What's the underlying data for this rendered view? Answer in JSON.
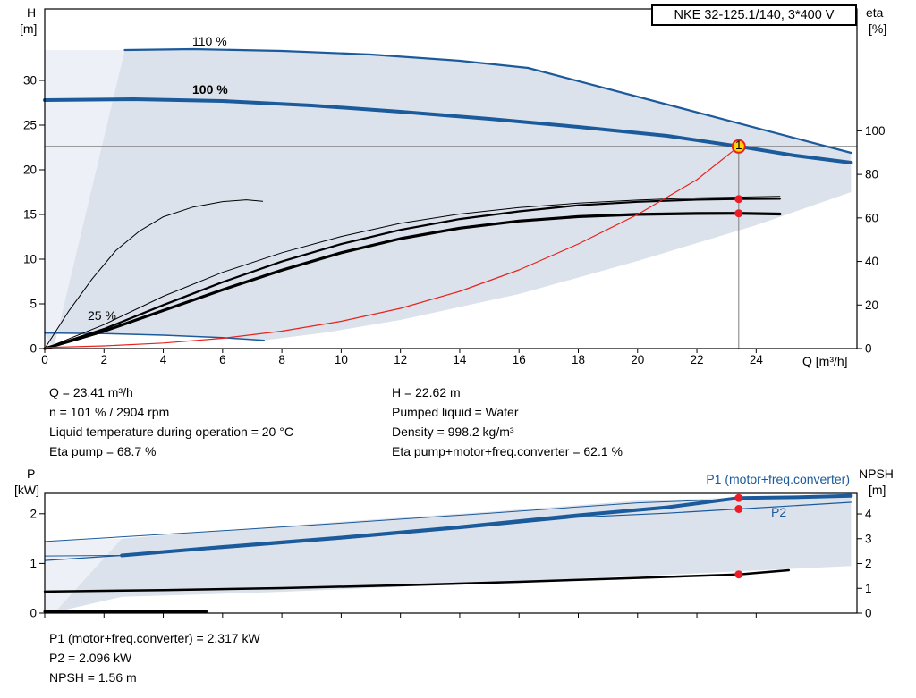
{
  "colors": {
    "curve_blue": "#1b5a9b",
    "curve_black": "#000000",
    "curve_red": "#e8231c",
    "marker_red": "#ee1c25",
    "marker_yellow": "#ffd400",
    "guide_gray": "#7f7f7f",
    "envelope": "#dbe2ec",
    "envelope_light": "#edf1f7"
  },
  "operating_point_text": {
    "left": [
      "Q = 23.41 m³/h",
      "n = 101 % / 2904 rpm",
      "Liquid temperature during operation = 20 °C",
      "Eta pump = 68.7 %"
    ],
    "right": [
      "H = 22.62 m",
      "Pumped liquid = Water",
      "Density = 998.2 kg/m³",
      "Eta pump+motor+freq.converter = 62.1 %"
    ]
  },
  "power_point_text": [
    "P1 (motor+freq.converter) = 2.317 kW",
    "P2 = 2.096 kW",
    "NPSH = 1.56 m"
  ],
  "chart_data": [
    {
      "name": "qh-eta-chart",
      "type": "line",
      "title": "NKE 32-125.1/140, 3*400 V",
      "xlabel": "Q [m³/h]",
      "ylabel_left_lines": [
        "H",
        "[m]"
      ],
      "ylabel_right_lines": [
        "eta",
        "[%]"
      ],
      "curve_labels": {
        "c110": "110 %",
        "c100": "100 %",
        "c25": "25 %"
      },
      "xlim": [
        0,
        27.4
      ],
      "ylim_left": [
        0,
        38
      ],
      "ylim_right": [
        0,
        156
      ],
      "x_ticks": [
        0,
        2,
        4,
        6,
        8,
        10,
        12,
        14,
        16,
        18,
        20,
        22,
        24
      ],
      "x_tick_labels": true,
      "y_left_ticks": [
        0,
        5,
        10,
        15,
        20,
        25,
        30
      ],
      "y_right_ticks": [
        0,
        20,
        40,
        60,
        80,
        100
      ],
      "series": [
        {
          "name": "operating-envelope-light",
          "kind": "area",
          "axis": "left",
          "color": "#edf1f7",
          "points": [
            [
              0,
              0
            ],
            [
              0,
              33.4
            ],
            [
              2.7,
              33.4
            ],
            [
              0.3,
              0
            ]
          ]
        },
        {
          "name": "operating-envelope",
          "kind": "area",
          "axis": "left",
          "color": "#dbe2ec",
          "points": [
            [
              0.3,
              0
            ],
            [
              2.7,
              33.4
            ],
            [
              5,
              33.5
            ],
            [
              8,
              33.3
            ],
            [
              11,
              32.9
            ],
            [
              14,
              32.2
            ],
            [
              16.3,
              31.4
            ],
            [
              27.2,
              21.9
            ],
            [
              27.2,
              17.5
            ],
            [
              24,
              13.8
            ],
            [
              20,
              9.8
            ],
            [
              16,
              6.1
            ],
            [
              12,
              3.2
            ],
            [
              9.5,
              1.8
            ],
            [
              7.4,
              0.92
            ],
            [
              5,
              1.45
            ],
            [
              3,
              1.65
            ],
            [
              0,
              1.74
            ]
          ]
        },
        {
          "name": "duty-hline",
          "kind": "line",
          "axis": "left",
          "color": "#7f7f7f",
          "width": 1,
          "points": [
            [
              0,
              22.62
            ],
            [
              27.4,
              22.62
            ]
          ]
        },
        {
          "name": "duty-vline",
          "kind": "line",
          "axis": "left",
          "color": "#7f7f7f",
          "width": 1,
          "points": [
            [
              23.41,
              0
            ],
            [
              23.41,
              22.62
            ]
          ]
        },
        {
          "name": "curve-110pct",
          "kind": "line",
          "axis": "left",
          "color": "#1b5a9b",
          "width": 2.2,
          "points": [
            [
              2.7,
              33.4
            ],
            [
              5,
              33.5
            ],
            [
              8,
              33.3
            ],
            [
              11,
              32.9
            ],
            [
              14,
              32.2
            ],
            [
              16.3,
              31.4
            ],
            [
              27.2,
              21.9
            ]
          ]
        },
        {
          "name": "curve-100pct",
          "kind": "line",
          "axis": "left",
          "color": "#1b5a9b",
          "width": 4,
          "points": [
            [
              0,
              27.8
            ],
            [
              3,
              27.9
            ],
            [
              6,
              27.7
            ],
            [
              9,
              27.2
            ],
            [
              12,
              26.5
            ],
            [
              15,
              25.7
            ],
            [
              18,
              24.8
            ],
            [
              21,
              23.8
            ],
            [
              23.41,
              22.62
            ],
            [
              25.3,
              21.6
            ],
            [
              27.2,
              20.8
            ]
          ]
        },
        {
          "name": "curve-25pct",
          "kind": "line",
          "axis": "left",
          "color": "#1b5a9b",
          "width": 1.5,
          "points": [
            [
              0,
              1.74
            ],
            [
              2,
              1.68
            ],
            [
              4,
              1.5
            ],
            [
              6,
              1.22
            ],
            [
              7.4,
              0.92
            ]
          ]
        },
        {
          "name": "eta-envelope-line",
          "kind": "line",
          "axis": "right",
          "color": "#000000",
          "width": 1,
          "points": [
            [
              0,
              0
            ],
            [
              2,
              11
            ],
            [
              4,
              24
            ],
            [
              6,
              35
            ],
            [
              8,
              44
            ],
            [
              10,
              51.5
            ],
            [
              12,
              57.5
            ],
            [
              14,
              61.8
            ],
            [
              16,
              64.8
            ],
            [
              18,
              66.8
            ],
            [
              20,
              68.2
            ],
            [
              22,
              69.2
            ],
            [
              24.8,
              69.9
            ]
          ]
        },
        {
          "name": "eta-pump-curve",
          "kind": "line",
          "axis": "right",
          "color": "#000000",
          "width": 2.2,
          "points": [
            [
              0,
              0
            ],
            [
              2,
              9
            ],
            [
              4,
              20
            ],
            [
              6,
              30.5
            ],
            [
              8,
              40
            ],
            [
              10,
              48
            ],
            [
              12,
              54.5
            ],
            [
              14,
              59.5
            ],
            [
              16,
              63
            ],
            [
              18,
              65.8
            ],
            [
              20,
              67.4
            ],
            [
              22,
              68.4
            ],
            [
              23.41,
              68.7
            ],
            [
              24.8,
              68.8
            ]
          ]
        },
        {
          "name": "eta-total-curve",
          "kind": "line",
          "axis": "right",
          "color": "#000000",
          "width": 3.2,
          "points": [
            [
              0,
              0
            ],
            [
              2,
              8
            ],
            [
              4,
              17.5
            ],
            [
              6,
              27
            ],
            [
              8,
              36
            ],
            [
              10,
              44
            ],
            [
              12,
              50.5
            ],
            [
              14,
              55.3
            ],
            [
              16,
              58.6
            ],
            [
              18,
              60.6
            ],
            [
              20,
              61.6
            ],
            [
              22,
              62.05
            ],
            [
              23.41,
              62.1
            ],
            [
              24.8,
              61.8
            ]
          ]
        },
        {
          "name": "eta-25pct-curve",
          "kind": "line",
          "axis": "right",
          "color": "#000000",
          "width": 1,
          "points": [
            [
              0,
              0
            ],
            [
              0.8,
              17
            ],
            [
              1.6,
              32
            ],
            [
              2.4,
              45
            ],
            [
              3.2,
              54
            ],
            [
              4,
              60.5
            ],
            [
              5,
              65
            ],
            [
              6,
              67.5
            ],
            [
              6.8,
              68.3
            ],
            [
              7.35,
              67.6
            ]
          ]
        },
        {
          "name": "control-curve",
          "kind": "line",
          "axis": "left",
          "color": "#e8231c",
          "width": 1.2,
          "points": [
            [
              0,
              0.12
            ],
            [
              2,
              0.3
            ],
            [
              4,
              0.62
            ],
            [
              6,
              1.15
            ],
            [
              8,
              1.95
            ],
            [
              10,
              3.05
            ],
            [
              12,
              4.5
            ],
            [
              14,
              6.4
            ],
            [
              16,
              8.8
            ],
            [
              18,
              11.7
            ],
            [
              20,
              15
            ],
            [
              22,
              18.9
            ],
            [
              23.41,
              22.62
            ]
          ]
        }
      ],
      "markers": [
        {
          "name": "duty-point",
          "q": 23.41,
          "v": 22.62,
          "axis": "left",
          "r": 7,
          "fill": "#ffd400",
          "stroke": "#e8231c",
          "sw": 2,
          "label": "1"
        },
        {
          "name": "eta-pump-point",
          "q": 23.41,
          "v": 68.7,
          "axis": "right",
          "r": 4.5,
          "fill": "#ee1c25"
        },
        {
          "name": "eta-total-point",
          "q": 23.41,
          "v": 62.1,
          "axis": "right",
          "r": 4.5,
          "fill": "#ee1c25"
        }
      ]
    },
    {
      "name": "power-npsh-chart",
      "type": "line",
      "title": "",
      "xlabel": "",
      "ylabel_left_lines": [
        "P",
        "[kW]"
      ],
      "ylabel_right_lines": [
        "NPSH",
        "[m]"
      ],
      "series_labels": {
        "p1": "P1 (motor+freq.converter)",
        "p2": "P2"
      },
      "xlim": [
        0,
        27.4
      ],
      "ylim_left": [
        0,
        2.41
      ],
      "ylim_right": [
        0,
        4.83
      ],
      "x_ticks": [
        0,
        2,
        4,
        6,
        8,
        10,
        12,
        14,
        16,
        18,
        20,
        22,
        24
      ],
      "x_tick_labels": false,
      "y_left_ticks": [
        0,
        1,
        2
      ],
      "y_right_ticks": [
        0,
        1,
        2,
        3,
        4
      ],
      "series": [
        {
          "name": "power-envelope-light",
          "kind": "area",
          "axis": "left",
          "color": "#edf1f7",
          "points": [
            [
              0,
              0
            ],
            [
              0,
              1.44
            ],
            [
              2.6,
              1.5
            ],
            [
              0.35,
              0
            ]
          ]
        },
        {
          "name": "power-envelope",
          "kind": "area",
          "axis": "left",
          "color": "#dbe2ec",
          "points": [
            [
              0.35,
              0.02
            ],
            [
              2.6,
              1.5
            ],
            [
              6,
              1.66
            ],
            [
              10,
              1.84
            ],
            [
              15,
              2.04
            ],
            [
              20,
              2.26
            ],
            [
              27.2,
              2.4
            ],
            [
              27.2,
              0.95
            ],
            [
              22,
              0.8
            ],
            [
              17,
              0.67
            ],
            [
              12,
              0.53
            ],
            [
              8,
              0.43
            ],
            [
              5,
              0.37
            ],
            [
              2.6,
              0.33
            ]
          ]
        },
        {
          "name": "power-envelope-top-line",
          "kind": "line",
          "axis": "left",
          "color": "#1b5a9b",
          "width": 1,
          "points": [
            [
              0,
              1.44
            ],
            [
              5,
              1.62
            ],
            [
              10,
              1.81
            ],
            [
              15,
              2.01
            ],
            [
              20,
              2.22
            ],
            [
              27.2,
              2.38
            ]
          ]
        },
        {
          "name": "p2-curve",
          "kind": "line",
          "axis": "left",
          "color": "#1b5a9b",
          "width": 1.2,
          "points": [
            [
              0,
              1.06
            ],
            [
              2.6,
              1.16
            ],
            [
              6,
              1.3
            ],
            [
              10,
              1.49
            ],
            [
              14,
              1.7
            ],
            [
              18,
              1.93
            ],
            [
              21,
              2.01
            ],
            [
              23.41,
              2.096
            ],
            [
              27.2,
              2.23
            ]
          ]
        },
        {
          "name": "p1-lead-line",
          "kind": "line",
          "axis": "left",
          "color": "#1b5a9b",
          "width": 1,
          "points": [
            [
              0,
              1.15
            ],
            [
              2.6,
              1.16
            ]
          ]
        },
        {
          "name": "p1-curve",
          "kind": "line",
          "axis": "left",
          "color": "#1b5a9b",
          "width": 4,
          "points": [
            [
              2.6,
              1.16
            ],
            [
              6,
              1.33
            ],
            [
              10,
              1.52
            ],
            [
              14,
              1.73
            ],
            [
              18,
              1.97
            ],
            [
              21,
              2.13
            ],
            [
              23.41,
              2.317
            ],
            [
              25.3,
              2.33
            ],
            [
              27.2,
              2.36
            ]
          ]
        },
        {
          "name": "npsh-curve",
          "kind": "line",
          "axis": "right",
          "color": "#000000",
          "width": 2.5,
          "points": [
            [
              0,
              0.87
            ],
            [
              4,
              0.93
            ],
            [
              8,
              1.01
            ],
            [
              12,
              1.12
            ],
            [
              16,
              1.26
            ],
            [
              20,
              1.42
            ],
            [
              23.41,
              1.56
            ],
            [
              25.1,
              1.73
            ]
          ]
        },
        {
          "name": "p-min-speed-line",
          "kind": "line",
          "axis": "left",
          "color": "#000000",
          "width": 3,
          "points": [
            [
              0,
              0.03
            ],
            [
              5.45,
              0.03
            ]
          ]
        }
      ],
      "markers": [
        {
          "name": "p1-point",
          "q": 23.41,
          "v": 2.317,
          "axis": "left",
          "r": 4.5,
          "fill": "#ee1c25"
        },
        {
          "name": "p2-point",
          "q": 23.41,
          "v": 2.096,
          "axis": "left",
          "r": 4.5,
          "fill": "#ee1c25"
        },
        {
          "name": "npsh-point",
          "q": 23.41,
          "v": 1.56,
          "axis": "right",
          "r": 4.5,
          "fill": "#ee1c25"
        }
      ]
    }
  ]
}
